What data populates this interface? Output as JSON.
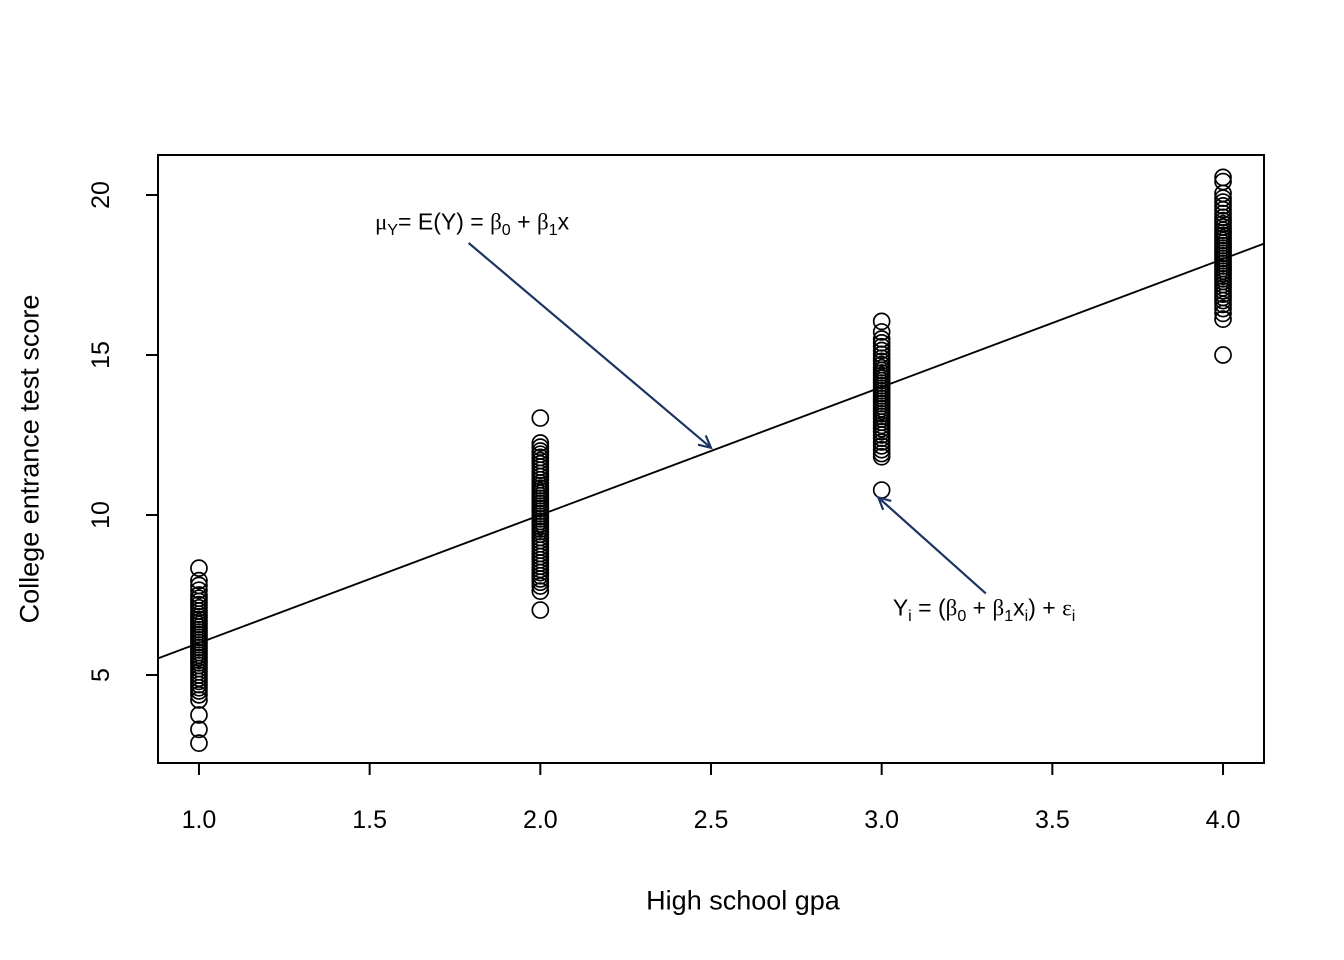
{
  "figure": {
    "background": "#ffffff",
    "foreground": "#000000",
    "arrow_color": "#1e3462"
  },
  "chart_data": {
    "type": "scatter",
    "title": "",
    "xlabel": "High school gpa",
    "ylabel": "College entrance test score",
    "xlim": [
      0.88,
      4.12
    ],
    "ylim": [
      2.25,
      21.25
    ],
    "x_ticks": [
      "1.0",
      "1.5",
      "2.0",
      "2.5",
      "3.0",
      "3.5",
      "4.0"
    ],
    "x_tick_values": [
      1.0,
      1.5,
      2.0,
      2.5,
      3.0,
      3.5,
      4.0
    ],
    "y_ticks": [
      "5",
      "10",
      "15",
      "20"
    ],
    "y_tick_values": [
      5,
      10,
      15,
      20
    ],
    "grid": false,
    "legend": null,
    "marker": "open-circle",
    "series": [
      {
        "name": "gpa-1",
        "x": 1,
        "y": [
          8.34,
          7.95,
          7.8,
          7.65,
          7.5,
          7.4,
          7.3,
          7.2,
          7.1,
          7.0,
          6.9,
          6.82,
          6.74,
          6.66,
          6.58,
          6.5,
          6.42,
          6.34,
          6.26,
          6.18,
          6.1,
          6.02,
          5.94,
          5.86,
          5.78,
          5.7,
          5.62,
          5.54,
          5.46,
          5.38,
          5.3,
          5.2,
          5.1,
          5.0,
          4.9,
          4.8,
          4.7,
          4.6,
          4.5,
          4.38,
          4.22,
          3.75,
          3.3,
          2.87
        ]
      },
      {
        "name": "gpa-2",
        "x": 2,
        "y": [
          13.03,
          12.25,
          12.12,
          12.0,
          11.9,
          11.8,
          11.7,
          11.6,
          11.5,
          11.4,
          11.3,
          11.2,
          11.1,
          11.0,
          10.92,
          10.84,
          10.76,
          10.68,
          10.6,
          10.52,
          10.44,
          10.36,
          10.28,
          10.2,
          10.12,
          10.04,
          9.96,
          9.88,
          9.8,
          9.72,
          9.64,
          9.56,
          9.48,
          9.4,
          9.3,
          9.2,
          9.1,
          9.0,
          8.9,
          8.8,
          8.7,
          8.6,
          8.5,
          8.4,
          8.3,
          8.2,
          8.1,
          8.0,
          7.9,
          7.78,
          7.62,
          7.03
        ]
      },
      {
        "name": "gpa-3",
        "x": 3,
        "y": [
          16.05,
          15.72,
          15.5,
          15.38,
          15.26,
          15.14,
          15.02,
          14.9,
          14.8,
          14.7,
          14.6,
          14.52,
          14.44,
          14.36,
          14.28,
          14.2,
          14.12,
          14.04,
          13.96,
          13.88,
          13.8,
          13.72,
          13.64,
          13.56,
          13.48,
          13.4,
          13.32,
          13.24,
          13.16,
          13.08,
          13.0,
          12.9,
          12.8,
          12.7,
          12.6,
          12.5,
          12.4,
          12.28,
          12.16,
          12.04,
          11.92,
          11.82,
          10.78
        ]
      },
      {
        "name": "gpa-4",
        "x": 4,
        "y": [
          20.55,
          20.42,
          20.05,
          19.9,
          19.78,
          19.66,
          19.54,
          19.42,
          19.3,
          19.2,
          19.1,
          19.0,
          18.9,
          18.82,
          18.74,
          18.66,
          18.58,
          18.5,
          18.42,
          18.34,
          18.26,
          18.18,
          18.1,
          18.02,
          17.94,
          17.86,
          17.78,
          17.7,
          17.62,
          17.54,
          17.46,
          17.38,
          17.3,
          17.2,
          17.1,
          17.0,
          16.9,
          16.8,
          16.7,
          16.58,
          16.45,
          16.3,
          16.12,
          15.0
        ]
      }
    ],
    "regression_line": {
      "intercept": 2,
      "slope": 4,
      "equation": "y = 2 + 4x",
      "x_start": 0.88,
      "x_end": 4.12,
      "color": "#000000"
    },
    "annotations": [
      {
        "name": "mean-function",
        "plain_text": "μY= E(Y) = β0 + β1x",
        "segments": [
          {
            "t": "μ",
            "greek": true
          },
          {
            "t": "Y",
            "sub": true
          },
          {
            "t": "= E(Y) = "
          },
          {
            "t": "β",
            "greek": true
          },
          {
            "t": "0",
            "sub": true
          },
          {
            "t": " + "
          },
          {
            "t": "β",
            "greek": true
          },
          {
            "t": "1",
            "sub": true
          },
          {
            "t": "x"
          }
        ],
        "text_anchor_data_xy": [
          1.8,
          19.15
        ],
        "arrow_from_data_xy": [
          1.79,
          18.5
        ],
        "arrow_to_data_xy": [
          2.5,
          12.1
        ]
      },
      {
        "name": "observation-model",
        "plain_text": "Yi = (β0 + β1xi) + εi",
        "segments": [
          {
            "t": "Y"
          },
          {
            "t": "i",
            "sub": true
          },
          {
            "t": " = ("
          },
          {
            "t": "β",
            "greek": true
          },
          {
            "t": "0",
            "sub": true
          },
          {
            "t": " + "
          },
          {
            "t": "β",
            "greek": true
          },
          {
            "t": "1",
            "sub": true
          },
          {
            "t": "x"
          },
          {
            "t": "i",
            "sub": true
          },
          {
            "t": ") + "
          },
          {
            "t": "ε",
            "greek": true
          },
          {
            "t": "i",
            "sub": true
          }
        ],
        "text_anchor_data_xy": [
          3.3,
          7.1
        ],
        "arrow_from_data_xy": [
          3.305,
          7.55
        ],
        "arrow_to_data_xy": [
          2.99,
          10.55
        ]
      }
    ]
  }
}
